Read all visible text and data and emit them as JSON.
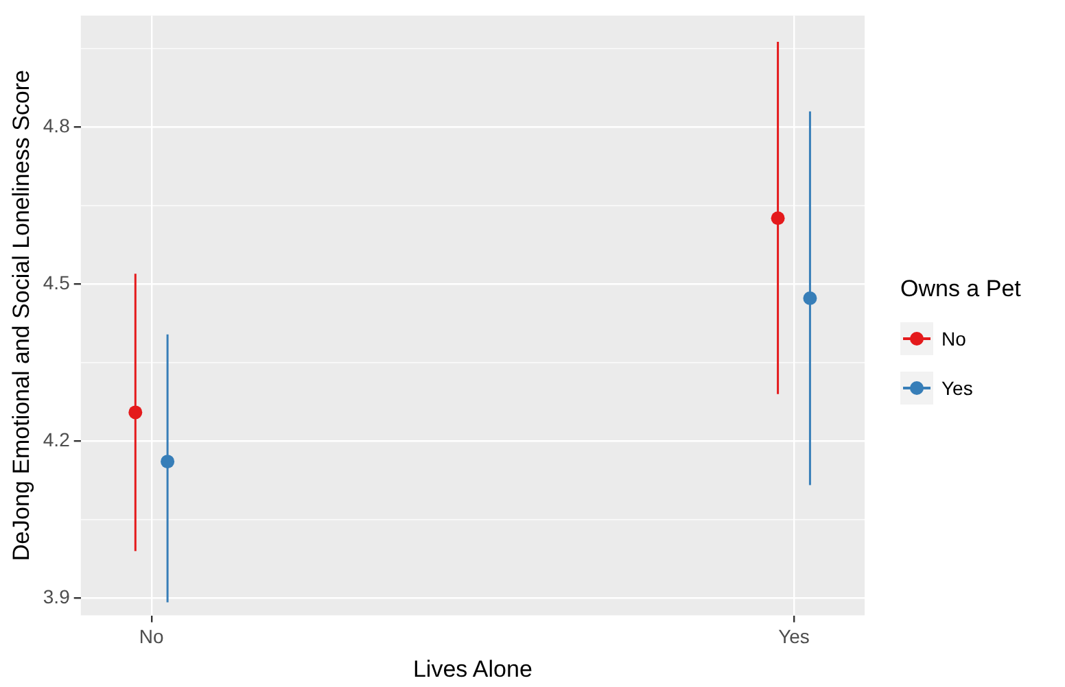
{
  "chart_data": {
    "type": "scatter",
    "xlabel": "Lives Alone",
    "ylabel": "DeJong Emotional and Social Loneliness Score",
    "legend_title": "Owns a Pet",
    "categories": [
      "No",
      "Yes"
    ],
    "ylim": [
      3.867,
      5.013
    ],
    "yticks": [
      {
        "value": 3.9,
        "label": "3.9"
      },
      {
        "value": 4.2,
        "label": "4.2"
      },
      {
        "value": 4.5,
        "label": "4.5"
      },
      {
        "value": 4.8,
        "label": "4.8"
      }
    ],
    "grid": true,
    "legend": "right",
    "marker": "circle",
    "series": [
      {
        "name": "No",
        "color": "#e41a1c",
        "values": [
          4.255,
          4.626
        ],
        "errors": [
          [
            3.99,
            4.52
          ],
          [
            4.29,
            4.963
          ]
        ]
      },
      {
        "name": "Yes",
        "color": "#377eb8",
        "values": [
          4.161,
          4.473
        ],
        "errors": [
          [
            3.892,
            4.404
          ],
          [
            4.116,
            4.83
          ]
        ]
      }
    ]
  }
}
